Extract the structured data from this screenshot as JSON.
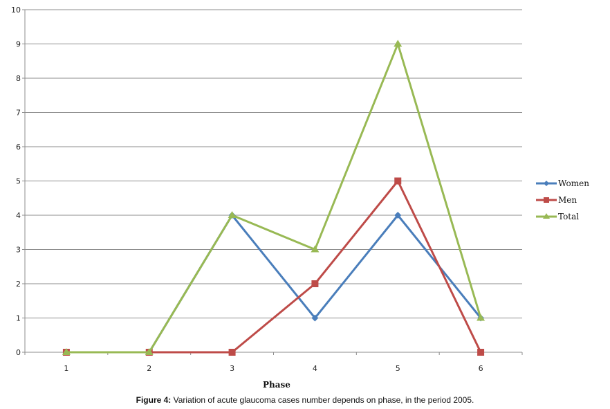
{
  "chart_data": {
    "type": "line",
    "x": [
      1,
      2,
      3,
      4,
      5,
      6
    ],
    "series": [
      {
        "name": "Women",
        "values": [
          0,
          0,
          4,
          1,
          4,
          1
        ],
        "color": "#4a7ebb",
        "marker": "diamond"
      },
      {
        "name": "Men",
        "values": [
          0,
          0,
          0,
          2,
          5,
          0
        ],
        "color": "#be4b48",
        "marker": "square"
      },
      {
        "name": "Total",
        "values": [
          0,
          0,
          4,
          3,
          9,
          1
        ],
        "color": "#98b954",
        "marker": "triangle"
      }
    ],
    "xlabel": "Phase",
    "ylim": [
      0,
      10
    ],
    "yticks": [
      0,
      1,
      2,
      3,
      4,
      5,
      6,
      7,
      8,
      9,
      10
    ],
    "grid": true,
    "legend": "right"
  },
  "caption": {
    "label": "Figure 4:",
    "text": " Variation of acute glaucoma cases number depends on phase, in the period 2005."
  }
}
